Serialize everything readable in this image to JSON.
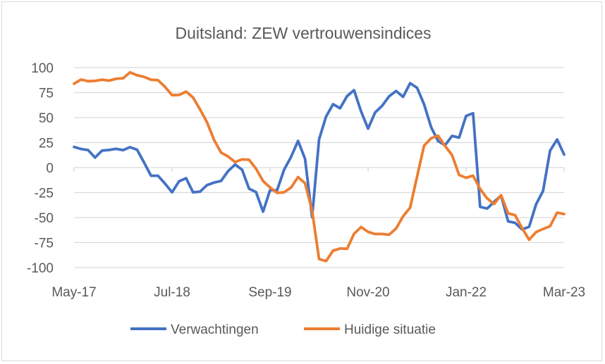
{
  "chart_data": {
    "type": "line",
    "title": "Duitsland: ZEW vertrouwensindices",
    "xlabel": "",
    "ylabel": "",
    "ylim": [
      -100,
      100
    ],
    "yticks": [
      "100",
      "75",
      "50",
      "25",
      "0",
      "-25",
      "-50",
      "-75",
      "-100"
    ],
    "x_start": "May-17",
    "x_end": "Mar-23",
    "xticks": [
      "May-17",
      "Jul-18",
      "Sep-19",
      "Nov-20",
      "Jan-22",
      "Mar-23"
    ],
    "grid": true,
    "legend": "bottom",
    "series": [
      {
        "name": "Verwachtingen",
        "color": "#4472C4",
        "values": [
          20.6,
          18.6,
          17.5,
          10.0,
          17.0,
          17.6,
          18.7,
          17.4,
          20.4,
          17.8,
          5.1,
          -8.2,
          -8.2,
          -16.1,
          -24.7,
          -13.7,
          -10.6,
          -24.7,
          -24.1,
          -17.5,
          -15.0,
          -13.4,
          -3.6,
          3.1,
          -2.1,
          -21.1,
          -24.5,
          -44.1,
          -22.5,
          -22.8,
          -2.1,
          10.7,
          26.7,
          8.7,
          -49.5,
          28.2,
          51.0,
          63.4,
          59.3,
          71.5,
          77.4,
          56.1,
          39.0,
          55.0,
          61.8,
          71.2,
          76.6,
          70.7,
          84.4,
          79.8,
          63.3,
          40.4,
          26.5,
          22.3,
          31.7,
          29.9,
          51.7,
          54.3,
          -39.3,
          -41.0,
          -34.3,
          -28.0,
          -53.8,
          -55.3,
          -61.9,
          -59.2,
          -36.7,
          -23.3,
          16.9,
          28.1,
          13.0
        ]
      },
      {
        "name": "Huidige situatie",
        "color": "#ED7D31",
        "values": [
          83.9,
          88.0,
          86.4,
          86.7,
          87.9,
          87.0,
          88.8,
          89.3,
          95.2,
          92.3,
          90.7,
          87.9,
          87.4,
          80.6,
          72.4,
          72.6,
          76.0,
          70.1,
          58.2,
          45.3,
          27.6,
          15.0,
          11.1,
          5.5,
          8.2,
          7.8,
          -1.1,
          -13.5,
          -19.9,
          -25.3,
          -24.7,
          -19.9,
          -9.5,
          -15.7,
          -43.1,
          -91.5,
          -93.5,
          -83.1,
          -80.9,
          -81.3,
          -66.2,
          -59.5,
          -64.3,
          -66.5,
          -66.4,
          -67.2,
          -61.0,
          -48.8,
          -40.1,
          -9.1,
          21.9,
          29.3,
          31.9,
          21.6,
          12.5,
          -7.4,
          -10.2,
          -8.1,
          -21.4,
          -30.8,
          -36.5,
          -27.6,
          -45.8,
          -47.6,
          -60.5,
          -72.2,
          -64.5,
          -61.4,
          -58.6,
          -45.1,
          -46.5
        ]
      }
    ]
  }
}
